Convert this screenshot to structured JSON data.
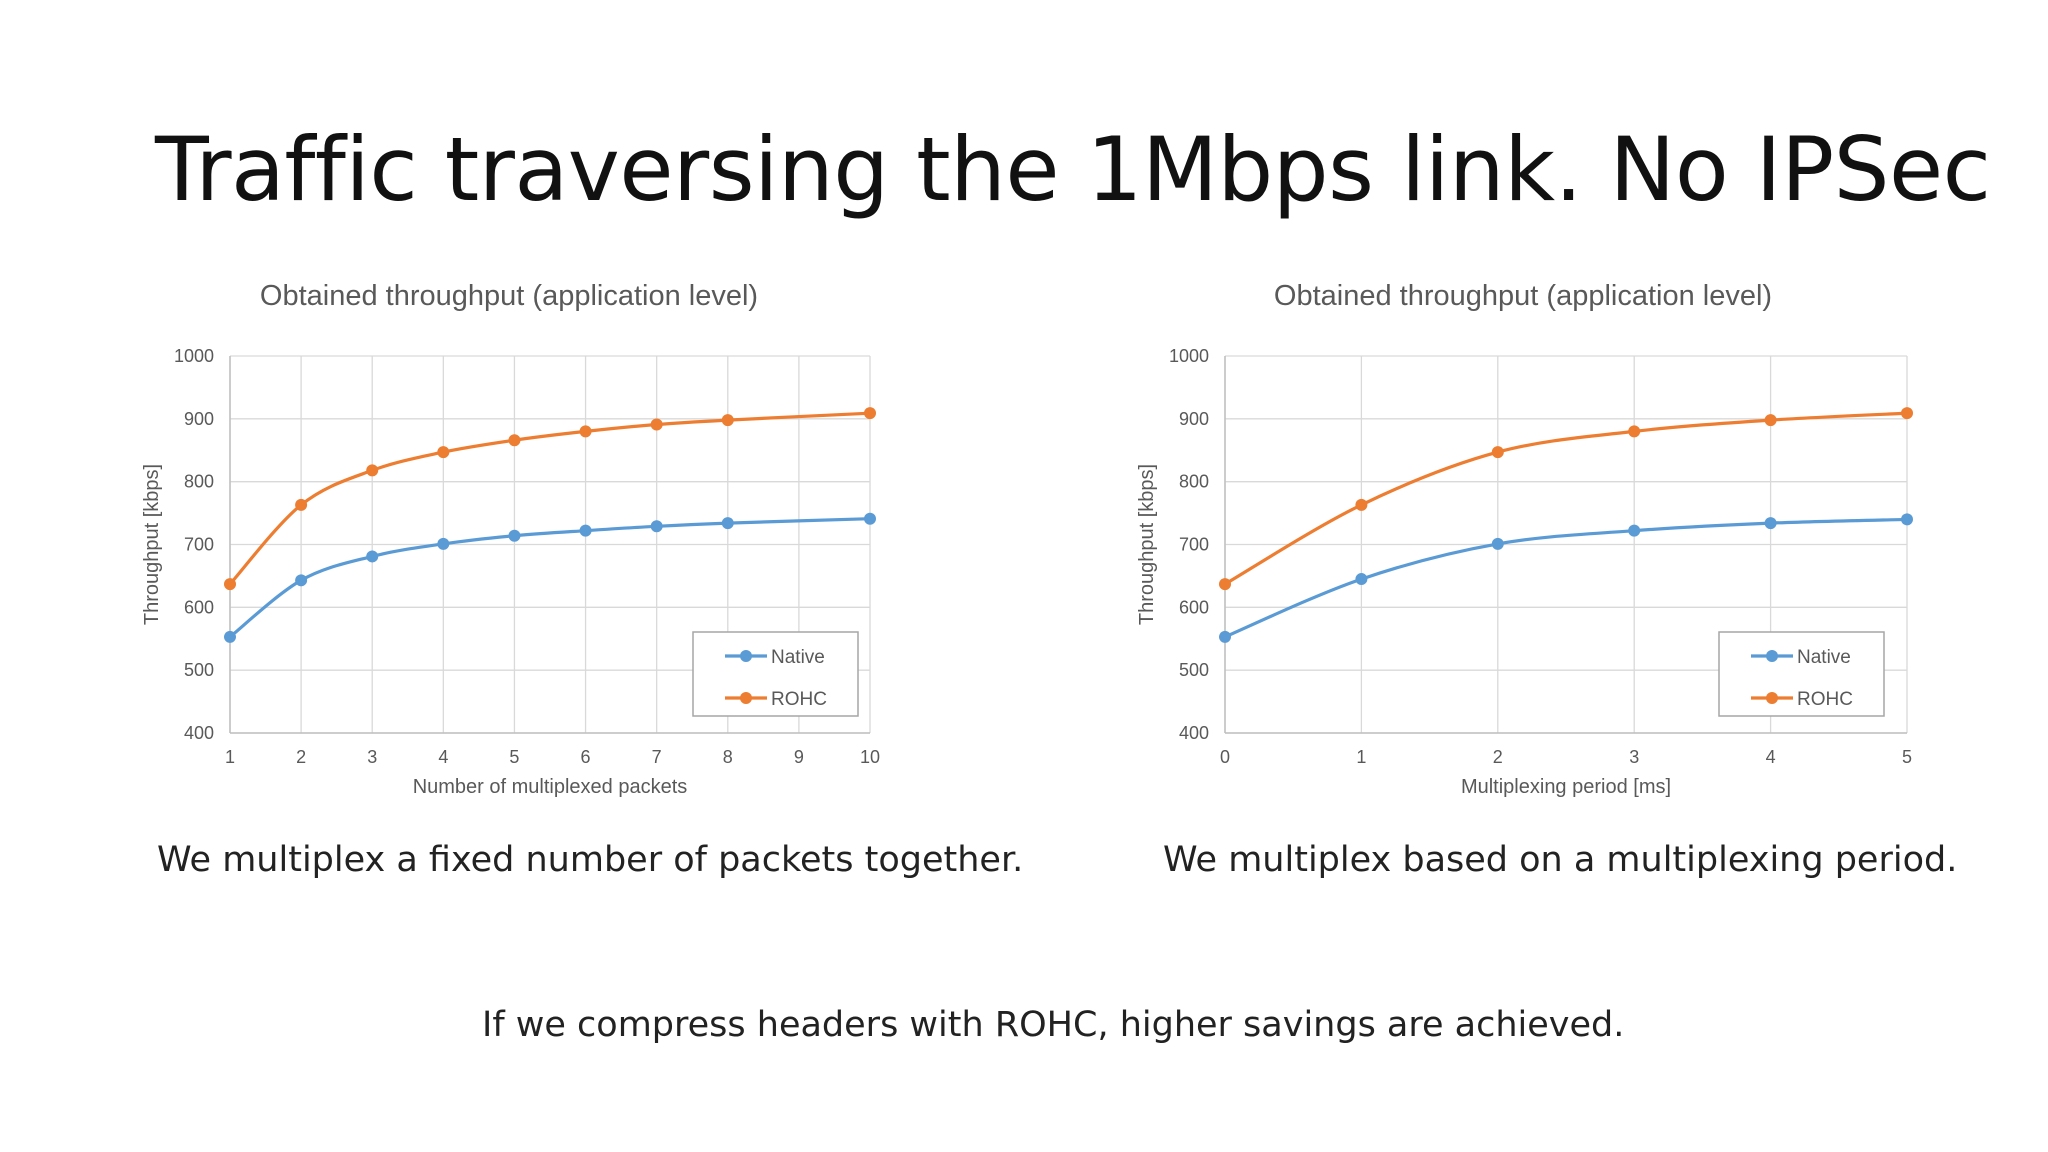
{
  "slide": {
    "title": "Traffic traversing the 1Mbps link. No IPSec",
    "caption_left": "We multiplex a fixed number of packets together.",
    "caption_right": "We multiplex based on a multiplexing period.",
    "footer_note": "If we compress headers with ROHC, higher savings are achieved."
  },
  "colors": {
    "native": "#5b9bd5",
    "rohc": "#ed7d31",
    "grid": "#d9d9d9",
    "axis_text": "#595959"
  },
  "chart_data": [
    {
      "type": "line",
      "title": "Obtained throughput (application level)",
      "xlabel": "Number of multiplexed packets",
      "ylabel": "Throughput [kbps]",
      "x": [
        1,
        2,
        3,
        4,
        5,
        6,
        7,
        8,
        9,
        10
      ],
      "xticks": [
        "1",
        "2",
        "3",
        "4",
        "5",
        "6",
        "7",
        "8",
        "9",
        "10"
      ],
      "xlim": [
        1,
        10
      ],
      "ylim": [
        400,
        1000
      ],
      "yticks": [
        "400",
        "500",
        "600",
        "700",
        "800",
        "900",
        "1000"
      ],
      "grid": true,
      "legend_position": "bottom-right",
      "series": [
        {
          "name": "Native",
          "x": [
            1,
            2,
            3,
            4,
            5,
            6,
            7,
            8,
            10
          ],
          "values": [
            553,
            643,
            681,
            701,
            714,
            722,
            729,
            734,
            741
          ]
        },
        {
          "name": "ROHC",
          "x": [
            1,
            2,
            3,
            4,
            5,
            6,
            7,
            8,
            10
          ],
          "values": [
            637,
            763,
            818,
            847,
            866,
            880,
            891,
            898,
            909
          ]
        }
      ]
    },
    {
      "type": "line",
      "title": "Obtained throughput (application level)",
      "xlabel": "Multiplexing period [ms]",
      "ylabel": "Throughput [kbps]",
      "x": [
        0,
        1,
        2,
        3,
        4,
        5
      ],
      "xticks": [
        "0",
        "1",
        "2",
        "3",
        "4",
        "5"
      ],
      "xlim": [
        0,
        5
      ],
      "ylim": [
        400,
        1000
      ],
      "yticks": [
        "400",
        "500",
        "600",
        "700",
        "800",
        "900",
        "1000"
      ],
      "grid": true,
      "legend_position": "bottom-right",
      "series": [
        {
          "name": "Native",
          "x": [
            0,
            1,
            2,
            3,
            4,
            5
          ],
          "values": [
            553,
            645,
            701,
            722,
            734,
            740
          ]
        },
        {
          "name": "ROHC",
          "x": [
            0,
            1,
            2,
            3,
            4,
            5
          ],
          "values": [
            637,
            763,
            847,
            880,
            898,
            909
          ]
        }
      ]
    }
  ]
}
